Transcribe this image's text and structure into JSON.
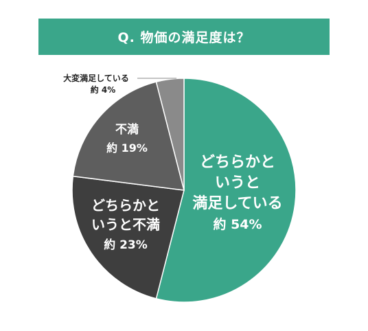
{
  "chart_data": {
    "type": "pie",
    "title": "Q. 物価の満足度は？",
    "slices": [
      {
        "name_lines": [
          "どちらかと",
          "いうと",
          "満足している"
        ],
        "value_label": "約 54%",
        "value": 54,
        "color": "#3aa68a"
      },
      {
        "name_lines": [
          "どちらかと",
          "いうと不満"
        ],
        "value_label": "約 23%",
        "value": 23,
        "color": "#3e3e3e"
      },
      {
        "name_lines": [
          "不満"
        ],
        "value_label": "約 19%",
        "value": 19,
        "color": "#5e5e5e"
      },
      {
        "name_lines": [
          "大変満足している"
        ],
        "value_label": "約 4%",
        "value": 4,
        "color": "#8a8a8a"
      }
    ],
    "legend": "none",
    "start": "top",
    "direction": "clockwise"
  }
}
